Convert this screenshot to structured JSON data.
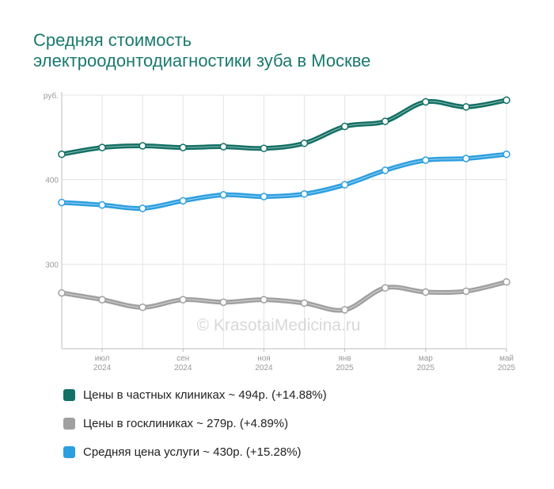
{
  "title": {
    "line1": "Средняя стоимость",
    "line2": "электроодонтодиагностики зуба в Москве"
  },
  "watermark": "© KrasotaiMedicina.ru",
  "chart_data": {
    "type": "line",
    "ylabel": "руб.",
    "ylim": [
      200,
      500
    ],
    "yticks": [
      {
        "value": 300,
        "label": "300"
      },
      {
        "value": 400,
        "label": "400"
      },
      {
        "value": 500,
        "label": "руб."
      }
    ],
    "x": [
      0,
      1,
      2,
      3,
      4,
      5,
      6,
      7,
      8,
      9,
      10,
      11
    ],
    "xlim": [
      0,
      11
    ],
    "xtick_labels": [
      {
        "x": 1,
        "line1": "июл",
        "line2": "2024"
      },
      {
        "x": 3,
        "line1": "сен",
        "line2": "2024"
      },
      {
        "x": 5,
        "line1": "ноя",
        "line2": "2024"
      },
      {
        "x": 7,
        "line1": "янв",
        "line2": "2025"
      },
      {
        "x": 9,
        "line1": "мар",
        "line2": "2025"
      },
      {
        "x": 11,
        "line1": "май",
        "line2": "2025"
      }
    ],
    "grid": true,
    "series": [
      {
        "name": "Цены в частных клиниках",
        "color": "#137065",
        "values": [
          430,
          438,
          440,
          438,
          439,
          437,
          443,
          463,
          469,
          492,
          486,
          494
        ]
      },
      {
        "name": "Цены в госклиниках",
        "color": "#a0a0a0",
        "values": [
          266,
          258,
          249,
          258,
          255,
          258,
          254,
          246,
          272,
          267,
          268,
          279
        ]
      },
      {
        "name": "Средняя цена услуги",
        "color": "#2d9fe0",
        "values": [
          373,
          370,
          366,
          375,
          382,
          380,
          383,
          394,
          411,
          423,
          425,
          430
        ]
      }
    ]
  },
  "legend": [
    {
      "text": "Цены в частных клиниках ~ 494р. (+14.88%)",
      "color": "#137065"
    },
    {
      "text": "Цены в госклиниках ~ 279р. (+4.89%)",
      "color": "#a0a0a0"
    },
    {
      "text": "Средняя цена услуги ~ 430р. (+15.28%)",
      "color": "#2d9fe0"
    }
  ]
}
